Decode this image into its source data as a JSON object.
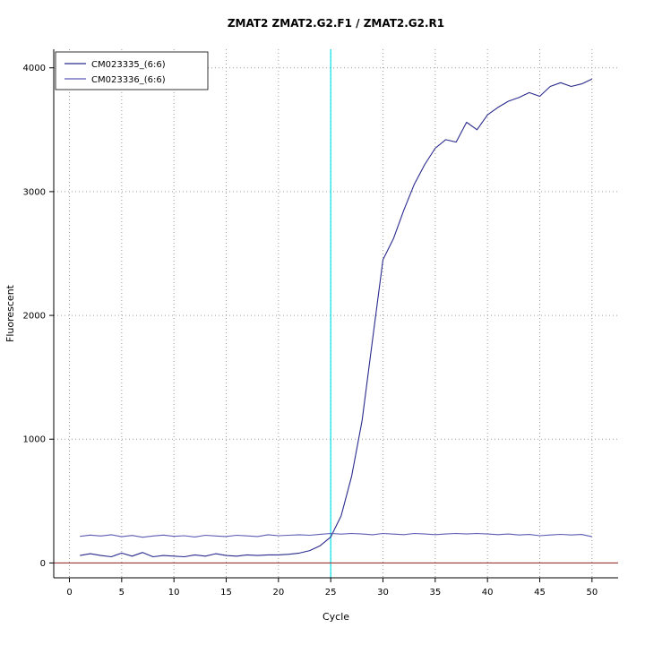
{
  "title": "ZMAT2  ZMAT2.G2.F1 / ZMAT2.G2.R1",
  "chart_data": {
    "type": "line",
    "title": "ZMAT2  ZMAT2.G2.F1 / ZMAT2.G2.R1",
    "xlabel": "Cycle",
    "ylabel": "Fluorescent",
    "xlim": [
      -1.5,
      52.5
    ],
    "ylim": [
      -120,
      4150
    ],
    "x_ticks": [
      0,
      5,
      10,
      15,
      20,
      25,
      30,
      35,
      40,
      45,
      50
    ],
    "y_ticks": [
      0,
      1000,
      2000,
      3000,
      4000
    ],
    "grid": "dotted",
    "grid_color": "#9a9a9a",
    "legend_position": "top-left",
    "threshold_line": {
      "orientation": "vertical",
      "x": 25,
      "color": "#00e0e8"
    },
    "baseline": {
      "orientation": "horizontal",
      "y": 0,
      "color": "#9a3a3a"
    },
    "x": [
      1,
      2,
      3,
      4,
      5,
      6,
      7,
      8,
      9,
      10,
      11,
      12,
      13,
      14,
      15,
      16,
      17,
      18,
      19,
      20,
      21,
      22,
      23,
      24,
      25,
      26,
      27,
      28,
      29,
      30,
      31,
      32,
      33,
      34,
      35,
      36,
      37,
      38,
      39,
      40,
      41,
      42,
      43,
      44,
      45,
      46,
      47,
      48,
      49,
      50
    ],
    "series": [
      {
        "name": "CM023335_(6:6)",
        "color": "#2a2a8e",
        "values": [
          60,
          75,
          60,
          50,
          80,
          55,
          85,
          50,
          60,
          55,
          50,
          65,
          55,
          75,
          60,
          55,
          65,
          60,
          65,
          65,
          70,
          80,
          100,
          140,
          210,
          380,
          700,
          1150,
          1800,
          2450,
          2620,
          2850,
          3060,
          3220,
          3350,
          3420,
          3400,
          3560,
          3500,
          3620,
          3680,
          3730,
          3760,
          3800,
          3770,
          3850,
          3880,
          3850,
          3870,
          3910
        ]
      },
      {
        "name": "CM023336_(6:6)",
        "color": "#5c5cb4",
        "values": [
          215,
          225,
          218,
          228,
          212,
          222,
          208,
          218,
          225,
          215,
          220,
          210,
          224,
          218,
          214,
          224,
          219,
          214,
          228,
          220,
          224,
          228,
          224,
          232,
          238,
          233,
          238,
          234,
          228,
          238,
          233,
          229,
          238,
          234,
          229,
          234,
          238,
          234,
          238,
          234,
          229,
          234,
          226,
          230,
          220,
          226,
          231,
          226,
          230,
          212
        ]
      }
    ]
  }
}
